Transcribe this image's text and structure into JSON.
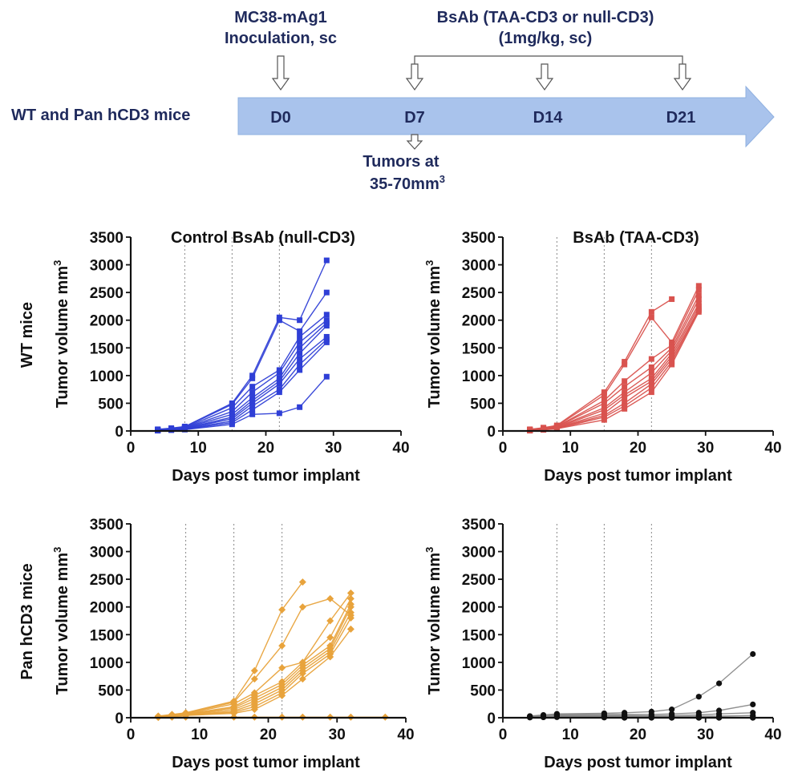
{
  "timeline": {
    "mice_label": "WT and Pan hCD3 mice",
    "inoculation_line1": "MC38-mAg1",
    "inoculation_line2": "Inoculation, sc",
    "bsab_line1": "BsAb (TAA-CD3 or null-CD3)",
    "bsab_line2": "(1mg/kg, sc)",
    "days": [
      "D0",
      "D7",
      "D14",
      "D21"
    ],
    "tumor_line1": "Tumors at",
    "tumor_line2": "35-70mm",
    "tumor_sup": "3",
    "arrow_color": "#a9c3ec",
    "text_color": "#1f2a5c"
  },
  "row_labels": {
    "wt": "WT mice",
    "pan": "Pan hCD3 mice"
  },
  "chart_data": [
    {
      "type": "line",
      "title": "Control BsAb (null-CD3)",
      "xlabel": "Days post tumor implant",
      "ylabel": "Tumor volume mm",
      "ylabel_sup": "3",
      "xlim": [
        0,
        40
      ],
      "ylim": [
        0,
        3500
      ],
      "xticks": [
        0,
        10,
        20,
        30,
        40
      ],
      "yticks": [
        0,
        500,
        1000,
        1500,
        2000,
        2500,
        3000,
        3500
      ],
      "dose_days": [
        8,
        15,
        22
      ],
      "color": "#2f3fd6",
      "marker": "square",
      "series": [
        {
          "x": [
            4,
            6,
            8,
            15,
            18,
            22,
            25,
            29
          ],
          "y": [
            30,
            50,
            80,
            500,
            1000,
            2050,
            2000,
            3080
          ]
        },
        {
          "x": [
            4,
            6,
            8,
            15,
            18,
            22,
            25,
            29
          ],
          "y": [
            25,
            45,
            70,
            480,
            950,
            2000,
            1800,
            2500
          ]
        },
        {
          "x": [
            4,
            6,
            8,
            15,
            18,
            22,
            25,
            29
          ],
          "y": [
            20,
            40,
            60,
            420,
            800,
            1100,
            1700,
            2100
          ]
        },
        {
          "x": [
            4,
            6,
            8,
            15,
            18,
            22,
            25,
            29
          ],
          "y": [
            18,
            35,
            55,
            350,
            700,
            1050,
            1600,
            2000
          ]
        },
        {
          "x": [
            4,
            6,
            8,
            15,
            18,
            22,
            25,
            29
          ],
          "y": [
            15,
            30,
            50,
            300,
            600,
            950,
            1500,
            1950
          ]
        },
        {
          "x": [
            4,
            6,
            8,
            15,
            18,
            22,
            25,
            29
          ],
          "y": [
            12,
            28,
            45,
            250,
            550,
            900,
            1400,
            1900
          ]
        },
        {
          "x": [
            4,
            6,
            8,
            15,
            18,
            22,
            25,
            29
          ],
          "y": [
            10,
            25,
            40,
            220,
            500,
            850,
            1300,
            1700
          ]
        },
        {
          "x": [
            4,
            6,
            8,
            15,
            18,
            22,
            25,
            29
          ],
          "y": [
            10,
            20,
            35,
            180,
            450,
            750,
            1200,
            1650
          ]
        },
        {
          "x": [
            4,
            6,
            8,
            15,
            18,
            22,
            25,
            29
          ],
          "y": [
            8,
            18,
            30,
            150,
            380,
            700,
            1100,
            1600
          ]
        },
        {
          "x": [
            4,
            6,
            8,
            15,
            18,
            22,
            25,
            29
          ],
          "y": [
            5,
            15,
            25,
            120,
            300,
            320,
            430,
            980
          ]
        }
      ]
    },
    {
      "type": "line",
      "title": "BsAb (TAA-CD3)",
      "xlabel": "Days post tumor implant",
      "ylabel": "Tumor volume mm",
      "ylabel_sup": "3",
      "xlim": [
        0,
        40
      ],
      "ylim": [
        0,
        3500
      ],
      "xticks": [
        0,
        10,
        20,
        30,
        40
      ],
      "yticks": [
        0,
        500,
        1000,
        1500,
        2000,
        2500,
        3000,
        3500
      ],
      "dose_days": [
        8,
        15,
        22
      ],
      "color": "#d9534f",
      "marker": "square",
      "series": [
        {
          "x": [
            4,
            6,
            8,
            15,
            18,
            22,
            25
          ],
          "y": [
            30,
            60,
            100,
            700,
            1250,
            2150,
            2380
          ]
        },
        {
          "x": [
            4,
            6,
            8,
            15,
            18,
            22,
            25,
            29
          ],
          "y": [
            25,
            55,
            90,
            650,
            1200,
            2050,
            1600,
            2620
          ]
        },
        {
          "x": [
            4,
            6,
            8,
            15,
            18,
            22,
            25,
            29
          ],
          "y": [
            22,
            50,
            80,
            550,
            900,
            1300,
            1550,
            2550
          ]
        },
        {
          "x": [
            4,
            6,
            8,
            15,
            18,
            22,
            25,
            29
          ],
          "y": [
            20,
            45,
            75,
            500,
            800,
            1150,
            1500,
            2450
          ]
        },
        {
          "x": [
            4,
            6,
            8,
            15,
            18,
            22,
            25,
            29
          ],
          "y": [
            18,
            40,
            70,
            420,
            700,
            1050,
            1450,
            2380
          ]
        },
        {
          "x": [
            4,
            6,
            8,
            15,
            18,
            22,
            25,
            29
          ],
          "y": [
            15,
            35,
            60,
            380,
            650,
            950,
            1400,
            2300
          ]
        },
        {
          "x": [
            4,
            6,
            8,
            15,
            18,
            22,
            25,
            29
          ],
          "y": [
            12,
            30,
            55,
            320,
            600,
            900,
            1350,
            2250
          ]
        },
        {
          "x": [
            4,
            6,
            8,
            15,
            18,
            22,
            25,
            29
          ],
          "y": [
            10,
            25,
            50,
            280,
            500,
            850,
            1300,
            2200
          ]
        },
        {
          "x": [
            4,
            6,
            8,
            15,
            18,
            22,
            25,
            29
          ],
          "y": [
            8,
            22,
            45,
            250,
            450,
            780,
            1250,
            2180
          ]
        },
        {
          "x": [
            4,
            6,
            8,
            15,
            18,
            22,
            25,
            29
          ],
          "y": [
            5,
            20,
            40,
            200,
            400,
            700,
            1200,
            2150
          ]
        }
      ]
    },
    {
      "type": "line",
      "title": "",
      "xlabel": "Days post tumor implant",
      "ylabel": "Tumor volume mm",
      "ylabel_sup": "3",
      "xlim": [
        0,
        40
      ],
      "ylim": [
        0,
        3500
      ],
      "xticks": [
        0,
        10,
        20,
        30,
        40
      ],
      "yticks": [
        0,
        500,
        1000,
        1500,
        2000,
        2500,
        3000,
        3500
      ],
      "dose_days": [
        8,
        15,
        22
      ],
      "color": "#e8a33c",
      "marker": "diamond",
      "series": [
        {
          "x": [
            4,
            6,
            8,
            15,
            18,
            22,
            25
          ],
          "y": [
            30,
            60,
            90,
            300,
            850,
            1950,
            2450
          ]
        },
        {
          "x": [
            4,
            6,
            8,
            15,
            18,
            22,
            25,
            29,
            32
          ],
          "y": [
            25,
            50,
            80,
            280,
            700,
            1300,
            2000,
            2150,
            1850
          ]
        },
        {
          "x": [
            4,
            6,
            8,
            15,
            18,
            22,
            25,
            29,
            32
          ],
          "y": [
            22,
            45,
            70,
            250,
            450,
            900,
            1000,
            1750,
            2250
          ]
        },
        {
          "x": [
            4,
            6,
            8,
            15,
            18,
            22,
            25,
            29,
            32
          ],
          "y": [
            20,
            40,
            65,
            200,
            400,
            650,
            1000,
            1450,
            2150
          ]
        },
        {
          "x": [
            4,
            6,
            8,
            15,
            18,
            22,
            25,
            29,
            32
          ],
          "y": [
            18,
            35,
            60,
            180,
            350,
            600,
            950,
            1300,
            2050
          ]
        },
        {
          "x": [
            4,
            6,
            8,
            15,
            18,
            22,
            25,
            29,
            32
          ],
          "y": [
            15,
            30,
            55,
            150,
            300,
            550,
            900,
            1250,
            2000
          ]
        },
        {
          "x": [
            4,
            6,
            8,
            15,
            18,
            22,
            25,
            29,
            32
          ],
          "y": [
            12,
            25,
            50,
            120,
            250,
            500,
            850,
            1200,
            1900
          ]
        },
        {
          "x": [
            4,
            6,
            8,
            15,
            18,
            22,
            25,
            29,
            32
          ],
          "y": [
            10,
            20,
            45,
            100,
            200,
            450,
            800,
            1150,
            1800
          ]
        },
        {
          "x": [
            4,
            6,
            8,
            15,
            18,
            22,
            25,
            29,
            32
          ],
          "y": [
            8,
            15,
            40,
            80,
            150,
            400,
            700,
            1100,
            1600
          ]
        },
        {
          "x": [
            4,
            6,
            8,
            15,
            18,
            22,
            25,
            29,
            32,
            37
          ],
          "y": [
            5,
            10,
            10,
            10,
            10,
            10,
            10,
            10,
            10,
            10
          ]
        }
      ]
    },
    {
      "type": "line",
      "title": "",
      "xlabel": "Days post tumor implant",
      "ylabel": "Tumor volume mm",
      "ylabel_sup": "3",
      "xlim": [
        0,
        40
      ],
      "ylim": [
        0,
        3500
      ],
      "xticks": [
        0,
        10,
        20,
        30,
        40
      ],
      "yticks": [
        0,
        500,
        1000,
        1500,
        2000,
        2500,
        3000,
        3500
      ],
      "dose_days": [
        8,
        15,
        22
      ],
      "color": "#111111",
      "line_color": "#8a8a8a",
      "marker": "circle",
      "series": [
        {
          "x": [
            4,
            6,
            8,
            15,
            18,
            22,
            25,
            29,
            32,
            37
          ],
          "y": [
            30,
            50,
            70,
            80,
            90,
            110,
            150,
            380,
            620,
            1150
          ]
        },
        {
          "x": [
            4,
            6,
            8,
            15,
            18,
            22,
            25,
            29,
            32,
            37
          ],
          "y": [
            25,
            40,
            55,
            60,
            60,
            60,
            70,
            90,
            130,
            240
          ]
        },
        {
          "x": [
            4,
            6,
            8,
            15,
            18,
            22,
            25,
            29,
            32,
            37
          ],
          "y": [
            20,
            35,
            45,
            40,
            40,
            35,
            40,
            50,
            70,
            90
          ]
        },
        {
          "x": [
            4,
            6,
            8,
            15,
            18,
            22,
            25,
            29,
            32,
            37
          ],
          "y": [
            15,
            25,
            35,
            30,
            25,
            20,
            20,
            25,
            30,
            40
          ]
        },
        {
          "x": [
            4,
            6,
            8,
            15,
            18,
            22,
            25,
            29,
            32,
            37
          ],
          "y": [
            10,
            20,
            25,
            20,
            15,
            10,
            10,
            10,
            10,
            10
          ]
        },
        {
          "x": [
            4,
            6,
            8,
            15,
            18,
            22,
            25,
            29,
            32,
            37
          ],
          "y": [
            8,
            15,
            20,
            10,
            5,
            5,
            0,
            0,
            0,
            0
          ]
        },
        {
          "x": [
            4,
            6,
            8,
            15,
            18,
            22,
            25,
            29,
            32,
            37
          ],
          "y": [
            5,
            10,
            15,
            5,
            0,
            0,
            0,
            0,
            0,
            0
          ]
        },
        {
          "x": [
            4,
            6,
            8,
            15,
            18,
            22,
            25,
            29,
            32,
            37
          ],
          "y": [
            5,
            8,
            10,
            5,
            0,
            0,
            0,
            0,
            0,
            0
          ]
        }
      ]
    }
  ]
}
